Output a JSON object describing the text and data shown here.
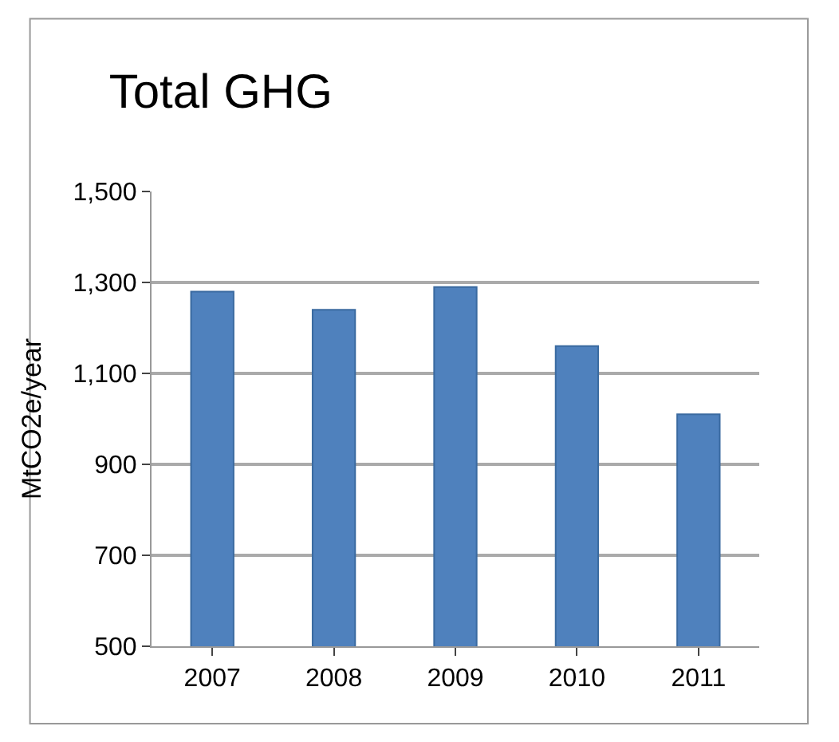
{
  "chart_data": {
    "type": "bar",
    "title": "Total GHG",
    "ylabel": "MtCO2e/year",
    "categories": [
      "2007",
      "2008",
      "2009",
      "2010",
      "2011"
    ],
    "values": [
      1280,
      1240,
      1290,
      1160,
      1010
    ],
    "color": "#4f81bd",
    "ylim": [
      500,
      1500
    ],
    "yticks": [
      {
        "value": 500,
        "label": "500"
      },
      {
        "value": 700,
        "label": "700"
      },
      {
        "value": 900,
        "label": "900"
      },
      {
        "value": 1100,
        "label": "1,100"
      },
      {
        "value": 1300,
        "label": "1,300"
      },
      {
        "value": 1500,
        "label": "1,500"
      }
    ],
    "grid": "y"
  }
}
